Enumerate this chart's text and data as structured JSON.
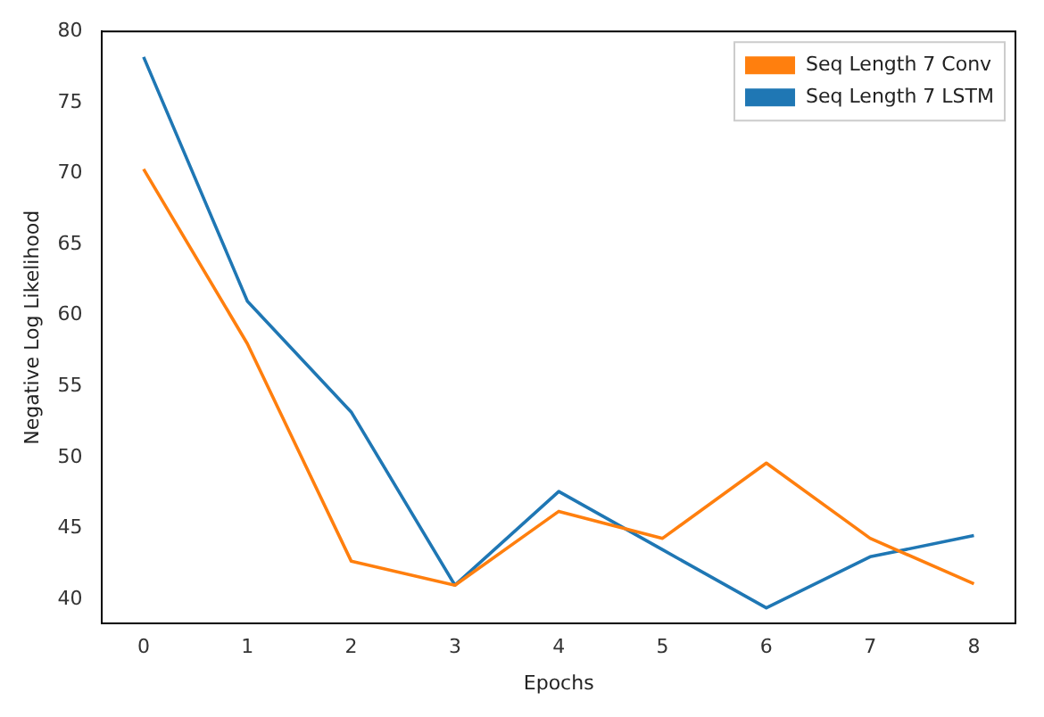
{
  "chart_data": {
    "type": "line",
    "xlabel": "Epochs",
    "ylabel": "Negative Log Likelihood",
    "x": [
      0,
      1,
      2,
      3,
      4,
      5,
      6,
      7,
      8
    ],
    "series": [
      {
        "name": "Seq Length 7 Conv",
        "color": "#ff7f0e",
        "values": [
          70.3,
          58,
          42.7,
          41,
          46.2,
          44.3,
          49.6,
          44.3,
          41.1
        ]
      },
      {
        "name": "Seq Length 7 LSTM",
        "color": "#1f77b4",
        "values": [
          78.2,
          61,
          53.2,
          41,
          47.6,
          43.5,
          39.4,
          43,
          44.5
        ]
      }
    ],
    "xlim": [
      -0.4,
      8.4
    ],
    "xticks": [
      0,
      1,
      2,
      3,
      4,
      5,
      6,
      7,
      8
    ],
    "ylim": [
      38.3,
      80
    ],
    "yticks": [
      40,
      45,
      50,
      55,
      60,
      65,
      70,
      75,
      80
    ],
    "grid": false,
    "legend": "top right",
    "marker": "none",
    "line_style": "solid"
  }
}
